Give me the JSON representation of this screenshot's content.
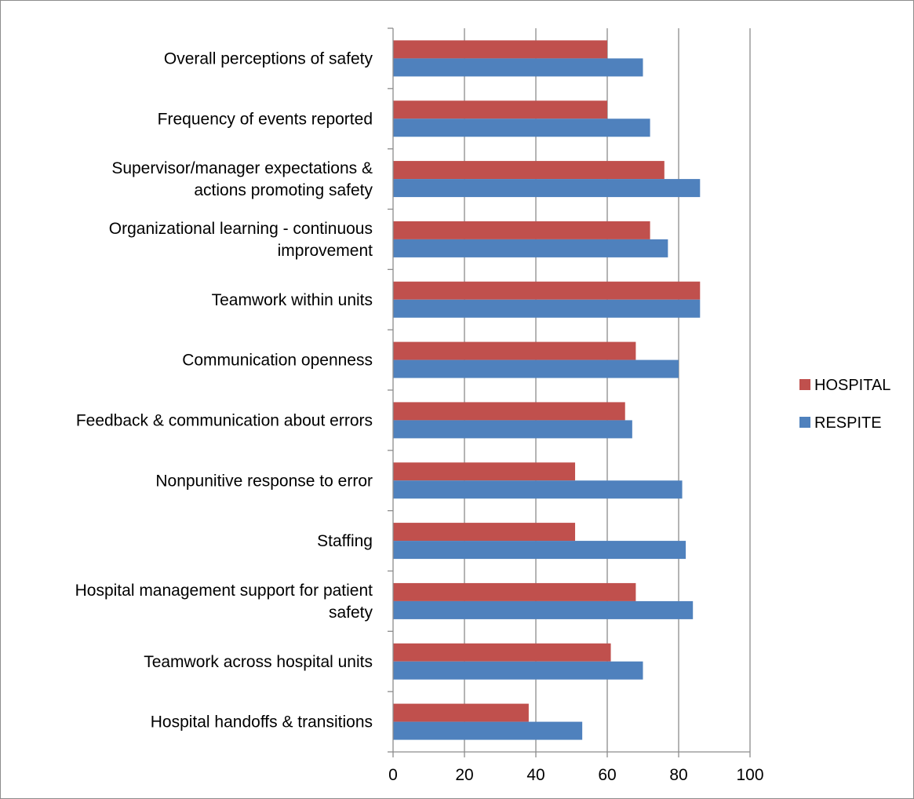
{
  "chart_data": {
    "type": "bar",
    "orientation": "horizontal",
    "title": "",
    "xlabel": "",
    "ylabel": "",
    "xlim": [
      0,
      100
    ],
    "x_ticks": [
      0,
      20,
      40,
      60,
      80,
      100
    ],
    "grid": "vertical major gridlines",
    "legend_position": "right",
    "categories": [
      [
        "Overall perceptions of safety"
      ],
      [
        "Frequency of events reported"
      ],
      [
        "Supervisor/manager expectations &",
        "actions promoting safety"
      ],
      [
        "Organizational learning - continuous",
        "improvement"
      ],
      [
        "Teamwork within units"
      ],
      [
        "Communication openness"
      ],
      [
        "Feedback & communication about errors"
      ],
      [
        "Nonpunitive response to error"
      ],
      [
        "Staffing"
      ],
      [
        "Hospital management support for patient",
        "safety"
      ],
      [
        "Teamwork across hospital units"
      ],
      [
        "Hospital handoffs & transitions"
      ]
    ],
    "series": [
      {
        "name": "HOSPITAL",
        "color": "#c0504d",
        "values": [
          60,
          60,
          76,
          72,
          86,
          68,
          65,
          51,
          51,
          68,
          61,
          38
        ]
      },
      {
        "name": "RESPITE",
        "color": "#4f81bd",
        "values": [
          70,
          72,
          86,
          77,
          86,
          80,
          67,
          81,
          82,
          84,
          70,
          53
        ]
      }
    ]
  }
}
